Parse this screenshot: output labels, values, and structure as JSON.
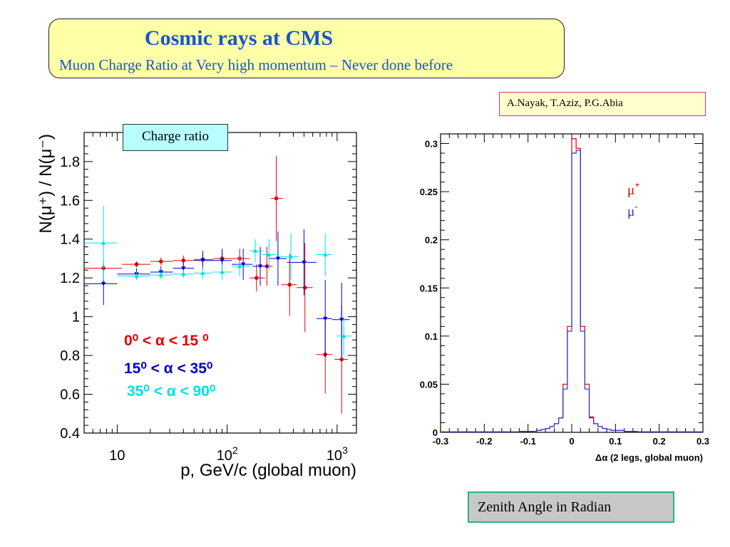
{
  "header": {
    "title": "Cosmic rays  at CMS",
    "subtitle": "Muon Charge Ratio  at Very high momentum – Never done  before"
  },
  "authors": "A.Nayak, T.Aziz, P.G.Abia",
  "charge_box_label": "Charge ratio",
  "zenith_box_label": "Zenith Angle in Radian",
  "chart_data": [
    {
      "type": "scatter",
      "title": "",
      "xlabel": "p, GeV/c (global muon)",
      "ylabel": "N(μ⁺) / N(μ⁻)",
      "x_scale": "log",
      "xlim": [
        5,
        1500
      ],
      "ylim": [
        0.4,
        1.95
      ],
      "x_ticks": [
        {
          "value": 10,
          "label": "10",
          "sup": ""
        },
        {
          "value": 100,
          "label": "10",
          "sup": "2"
        },
        {
          "value": 1000,
          "label": "10",
          "sup": "3"
        }
      ],
      "y_ticks": [
        0.4,
        0.6,
        0.8,
        1,
        1.2,
        1.4,
        1.6,
        1.8
      ],
      "y_tick_labels": [
        "0.4",
        "0.6",
        "0.8",
        "1",
        "1.2",
        "1.4",
        "1.6",
        "1.8"
      ],
      "legend": [
        {
          "text": "0⁰ < α < 15 ⁰",
          "color": "#e00000"
        },
        {
          "text": "15⁰ < α < 35⁰",
          "color": "#0000cc"
        },
        {
          "text": "35⁰ < α < 90⁰",
          "color": "#00e0e0"
        }
      ],
      "series": [
        {
          "name": "0⁰ < α < 15 ⁰",
          "color": "#e00000",
          "marker": "circle",
          "points": [
            {
              "x": 7.5,
              "xlo": 5,
              "xhi": 11,
              "y": 1.25,
              "yerr": 0.02
            },
            {
              "x": 15,
              "xlo": 11,
              "xhi": 20,
              "y": 1.27,
              "yerr": 0.015
            },
            {
              "x": 25,
              "xlo": 20,
              "xhi": 32,
              "y": 1.285,
              "yerr": 0.02
            },
            {
              "x": 40,
              "xlo": 32,
              "xhi": 50,
              "y": 1.29,
              "yerr": 0.025
            },
            {
              "x": 60,
              "xlo": 50,
              "xhi": 75,
              "y": 1.295,
              "yerr": 0.03
            },
            {
              "x": 90,
              "xlo": 75,
              "xhi": 110,
              "y": 1.3,
              "yerr": 0.04
            },
            {
              "x": 130,
              "xlo": 110,
              "xhi": 160,
              "y": 1.3,
              "yerr": 0.05
            },
            {
              "x": 185,
              "xlo": 160,
              "xhi": 220,
              "y": 1.2,
              "yerr": 0.07
            },
            {
              "x": 230,
              "xlo": 200,
              "xhi": 260,
              "y": 1.26,
              "yerr": 0.1
            },
            {
              "x": 280,
              "xlo": 250,
              "xhi": 320,
              "y": 1.61,
              "yerr": 0.22
            },
            {
              "x": 370,
              "xlo": 310,
              "xhi": 430,
              "y": 1.165,
              "yerr": 0.16
            },
            {
              "x": 510,
              "xlo": 430,
              "xhi": 600,
              "y": 1.15,
              "yerr": 0.23
            },
            {
              "x": 780,
              "xlo": 650,
              "xhi": 900,
              "y": 0.805,
              "yerr": 0.2
            },
            {
              "x": 1100,
              "xlo": 950,
              "xhi": 1250,
              "y": 0.78,
              "yerr": 0.28
            }
          ]
        },
        {
          "name": "15⁰ < α < 35⁰",
          "color": "#0000cc",
          "marker": "triangle-down",
          "points": [
            {
              "x": 7.5,
              "xlo": 5,
              "xhi": 10,
              "y": 1.17,
              "yerr": 0.11
            },
            {
              "x": 15,
              "xlo": 10,
              "xhi": 20,
              "y": 1.22,
              "yerr": 0.03
            },
            {
              "x": 25,
              "xlo": 20,
              "xhi": 32,
              "y": 1.23,
              "yerr": 0.03
            },
            {
              "x": 40,
              "xlo": 32,
              "xhi": 50,
              "y": 1.25,
              "yerr": 0.03
            },
            {
              "x": 60,
              "xlo": 50,
              "xhi": 75,
              "y": 1.29,
              "yerr": 0.05
            },
            {
              "x": 90,
              "xlo": 75,
              "xhi": 110,
              "y": 1.29,
              "yerr": 0.06
            },
            {
              "x": 140,
              "xlo": 110,
              "xhi": 170,
              "y": 1.27,
              "yerr": 0.08
            },
            {
              "x": 200,
              "xlo": 170,
              "xhi": 240,
              "y": 1.26,
              "yerr": 0.1
            },
            {
              "x": 290,
              "xlo": 240,
              "xhi": 350,
              "y": 1.3,
              "yerr": 0.14
            },
            {
              "x": 500,
              "xlo": 350,
              "xhi": 650,
              "y": 1.28,
              "yerr": 0.17
            },
            {
              "x": 780,
              "xlo": 650,
              "xhi": 900,
              "y": 0.99,
              "yerr": 0.2
            },
            {
              "x": 1100,
              "xlo": 900,
              "xhi": 1300,
              "y": 0.985,
              "yerr": 0.19
            }
          ]
        },
        {
          "name": "35⁰ < α < 90⁰",
          "color": "#00e0e0",
          "marker": "triangle-up",
          "points": [
            {
              "x": 7.5,
              "xlo": 5,
              "xhi": 10,
              "y": 1.38,
              "yerr": 0.19
            },
            {
              "x": 15,
              "xlo": 10,
              "xhi": 20,
              "y": 1.21,
              "yerr": 0.02
            },
            {
              "x": 25,
              "xlo": 20,
              "xhi": 32,
              "y": 1.215,
              "yerr": 0.02
            },
            {
              "x": 40,
              "xlo": 32,
              "xhi": 50,
              "y": 1.22,
              "yerr": 0.02
            },
            {
              "x": 60,
              "xlo": 50,
              "xhi": 75,
              "y": 1.225,
              "yerr": 0.03
            },
            {
              "x": 90,
              "xlo": 75,
              "xhi": 110,
              "y": 1.23,
              "yerr": 0.04
            },
            {
              "x": 130,
              "xlo": 110,
              "xhi": 160,
              "y": 1.26,
              "yerr": 0.05
            },
            {
              "x": 180,
              "xlo": 160,
              "xhi": 210,
              "y": 1.34,
              "yerr": 0.06
            },
            {
              "x": 240,
              "xlo": 210,
              "xhi": 280,
              "y": 1.32,
              "yerr": 0.08
            },
            {
              "x": 380,
              "xlo": 300,
              "xhi": 450,
              "y": 1.31,
              "yerr": 0.12
            },
            {
              "x": 780,
              "xlo": 650,
              "xhi": 900,
              "y": 1.32,
              "yerr": 0.11
            },
            {
              "x": 1150,
              "xlo": 980,
              "xhi": 1350,
              "y": 0.9,
              "yerr": 0.1
            }
          ]
        }
      ]
    },
    {
      "type": "histogram",
      "title": "",
      "xlabel": "Δα (2 legs, global muon)",
      "ylabel": "",
      "xlim": [
        -0.3,
        0.3
      ],
      "ylim": [
        0,
        0.31
      ],
      "x_ticks": [
        -0.3,
        -0.2,
        -0.1,
        0,
        0.1,
        0.2,
        0.3
      ],
      "x_tick_labels": [
        "-0.3",
        "-0.2",
        "-0.1",
        "0",
        "0.1",
        "0.2",
        "0.3"
      ],
      "y_ticks": [
        0,
        0.05,
        0.1,
        0.15,
        0.2,
        0.25,
        0.3
      ],
      "y_tick_labels": [
        "0",
        "0.05",
        "0.1",
        "0.15",
        "0.2",
        "0.25",
        "0.3"
      ],
      "bin_edges": [
        -0.3,
        -0.27,
        -0.24,
        -0.21,
        -0.18,
        -0.15,
        -0.12,
        -0.09,
        -0.08,
        -0.07,
        -0.06,
        -0.05,
        -0.04,
        -0.03,
        -0.02,
        -0.01,
        0,
        0.01,
        0.02,
        0.03,
        0.04,
        0.05,
        0.06,
        0.07,
        0.08,
        0.09,
        0.12,
        0.15,
        0.18,
        0.21,
        0.24,
        0.27,
        0.3
      ],
      "legend": [
        {
          "text": "μ",
          "sup": "+",
          "color": "#e00000"
        },
        {
          "text": "μ",
          "sup": "-",
          "color": "#3030d0"
        }
      ],
      "series": [
        {
          "name": "μ⁺",
          "color": "#e00000",
          "values": [
            0.0005,
            0.0005,
            0.0005,
            0.0005,
            0.0005,
            0.0005,
            0.001,
            0.001,
            0.002,
            0.003,
            0.004,
            0.006,
            0.009,
            0.015,
            0.05,
            0.11,
            0.305,
            0.295,
            0.11,
            0.05,
            0.016,
            0.009,
            0.006,
            0.004,
            0.003,
            0.002,
            0.001,
            0.0005,
            0.0005,
            0.0005,
            0.0005,
            0.0005
          ]
        },
        {
          "name": "μ⁻",
          "color": "#3030d0",
          "values": [
            0.0005,
            0.0005,
            0.0005,
            0.0005,
            0.0005,
            0.0005,
            0.001,
            0.001,
            0.002,
            0.003,
            0.004,
            0.006,
            0.009,
            0.015,
            0.045,
            0.105,
            0.29,
            0.293,
            0.105,
            0.045,
            0.015,
            0.009,
            0.006,
            0.004,
            0.003,
            0.002,
            0.001,
            0.0005,
            0.0005,
            0.0005,
            0.0005,
            0.0005
          ]
        }
      ]
    }
  ]
}
